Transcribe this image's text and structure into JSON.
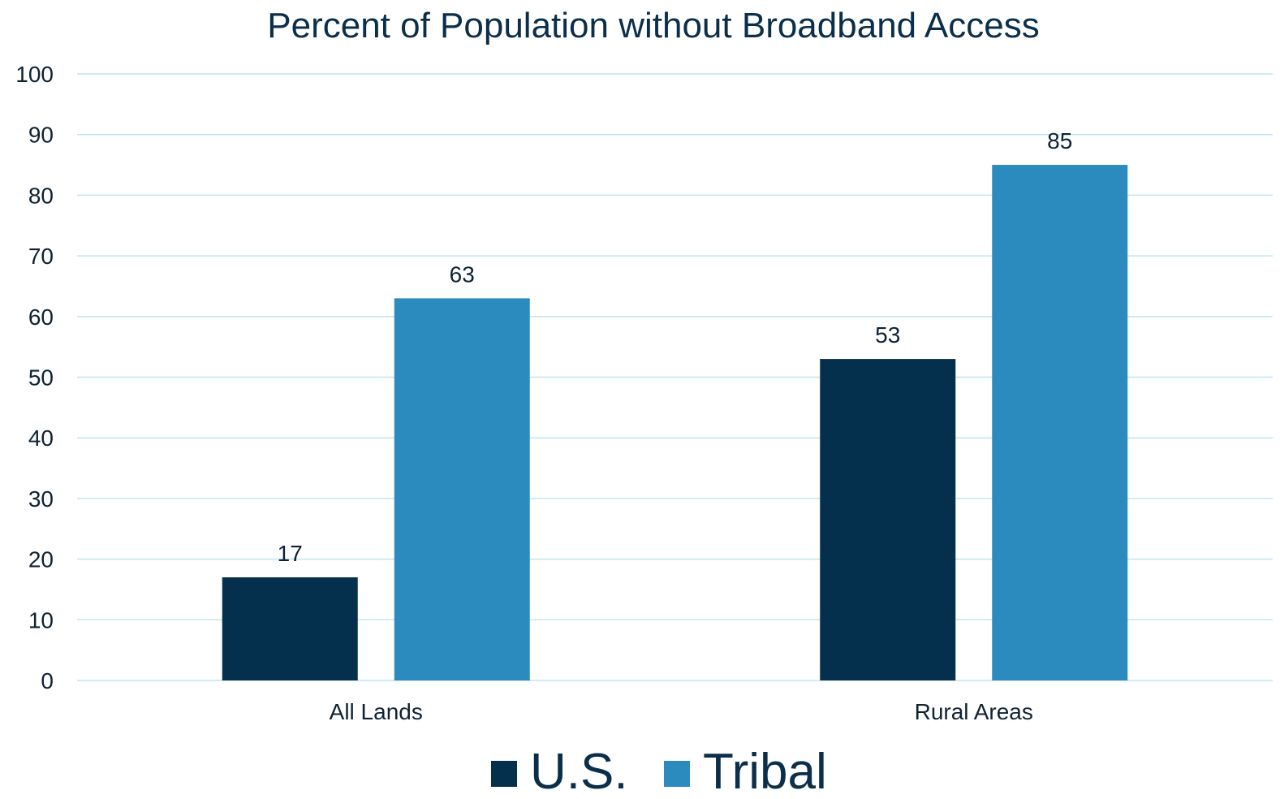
{
  "chart_data": {
    "type": "bar",
    "title": "Percent of Population without Broadband Access",
    "categories": [
      "All Lands",
      "Rural Areas"
    ],
    "series": [
      {
        "name": "U.S.",
        "color": "#05304d",
        "values": [
          17,
          53
        ]
      },
      {
        "name": "Tribal",
        "color": "#2b8bbf",
        "values": [
          63,
          85
        ]
      }
    ],
    "ylim": [
      0,
      100
    ],
    "yticks": [
      "0",
      "10",
      "20",
      "30",
      "40",
      "50",
      "60",
      "70",
      "80",
      "90",
      "100"
    ],
    "gridlines": true,
    "grid_color": "#bfe6f2",
    "data_labels": true,
    "legend_position": "bottom"
  }
}
